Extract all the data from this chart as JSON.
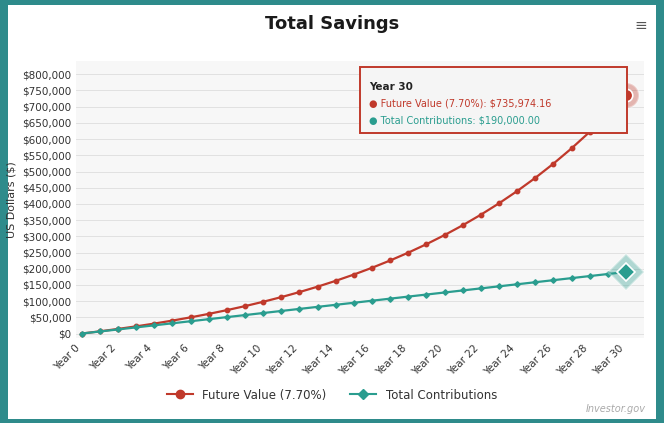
{
  "title": "Total Savings",
  "ylabel": "US Dollars ($)",
  "background_outer": "#2e8b8b",
  "background_card": "#ffffff",
  "background_plot": "#f7f7f7",
  "rate": 0.077,
  "annual_contribution": 6333.333,
  "years": 30,
  "future_value_color": "#c0392b",
  "contributions_color": "#2a9d8f",
  "yticks": [
    0,
    50000,
    100000,
    150000,
    200000,
    250000,
    300000,
    350000,
    400000,
    450000,
    500000,
    550000,
    600000,
    650000,
    700000,
    750000,
    800000
  ],
  "ylim": [
    -15000,
    840000
  ],
  "xlim": [
    -0.3,
    31.0
  ],
  "tooltip_title": "Year 30",
  "tooltip_fv_label": "Future Value (7.70%): $735,974.16",
  "tooltip_tc_label": "Total Contributions: $190,000.00",
  "watermark": "Investor.gov",
  "legend_fv": "Future Value (7.70%)",
  "legend_tc": "Total Contributions",
  "title_fontsize": 13,
  "axis_label_fontsize": 8,
  "tick_fontsize": 7.5,
  "grid_color": "#dddddd",
  "text_color": "#333333"
}
